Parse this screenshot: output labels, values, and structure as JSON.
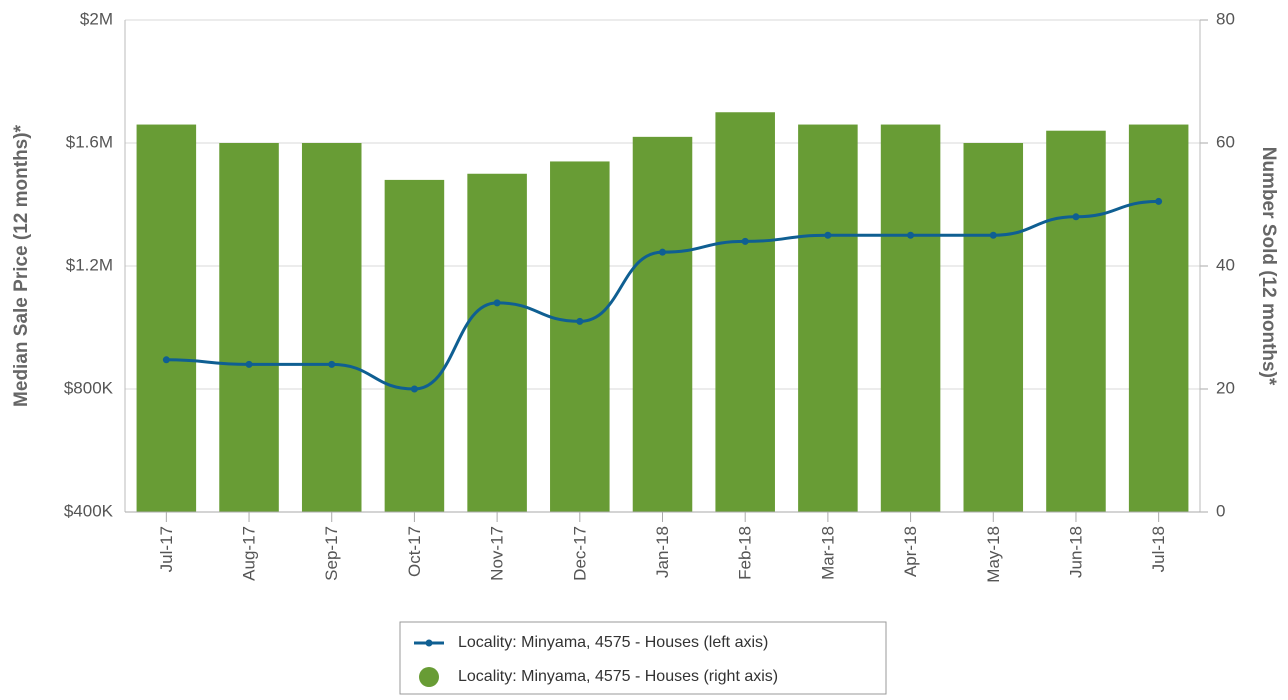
{
  "chart_data": {
    "type": "bar_line",
    "categories": [
      "Jul-17",
      "Aug-17",
      "Sep-17",
      "Oct-17",
      "Nov-17",
      "Dec-17",
      "Jan-18",
      "Feb-18",
      "Mar-18",
      "Apr-18",
      "May-18",
      "Jun-18",
      "Jul-18"
    ],
    "ylabel": "Median Sale Price (12 months)*",
    "y2label": "Number Sold (12 months)*",
    "ylim": [
      400000,
      2000000
    ],
    "yticks": [
      {
        "value": 400000,
        "label": "$400K"
      },
      {
        "value": 800000,
        "label": "$800K"
      },
      {
        "value": 1200000,
        "label": "$1.2M"
      },
      {
        "value": 1600000,
        "label": "$1.6M"
      },
      {
        "value": 2000000,
        "label": "$2M"
      }
    ],
    "y2lim": [
      0,
      80
    ],
    "y2ticks": [
      0,
      20,
      40,
      60,
      80
    ],
    "grid": true,
    "series": [
      {
        "name": "Locality: Minyama, 4575 - Houses (left axis)",
        "type": "line",
        "axis": "y",
        "color": "#0f5f92",
        "values": [
          895000,
          880000,
          880000,
          800000,
          1080000,
          1020000,
          1245000,
          1280000,
          1300000,
          1300000,
          1300000,
          1360000,
          1410000
        ]
      },
      {
        "name": "Locality: Minyama, 4575 - Houses (right axis)",
        "type": "bar",
        "axis": "y2",
        "color": "#689c35",
        "values": [
          63,
          60,
          60,
          54,
          55,
          57,
          61,
          65,
          63,
          63,
          60,
          62,
          63
        ]
      }
    ]
  }
}
